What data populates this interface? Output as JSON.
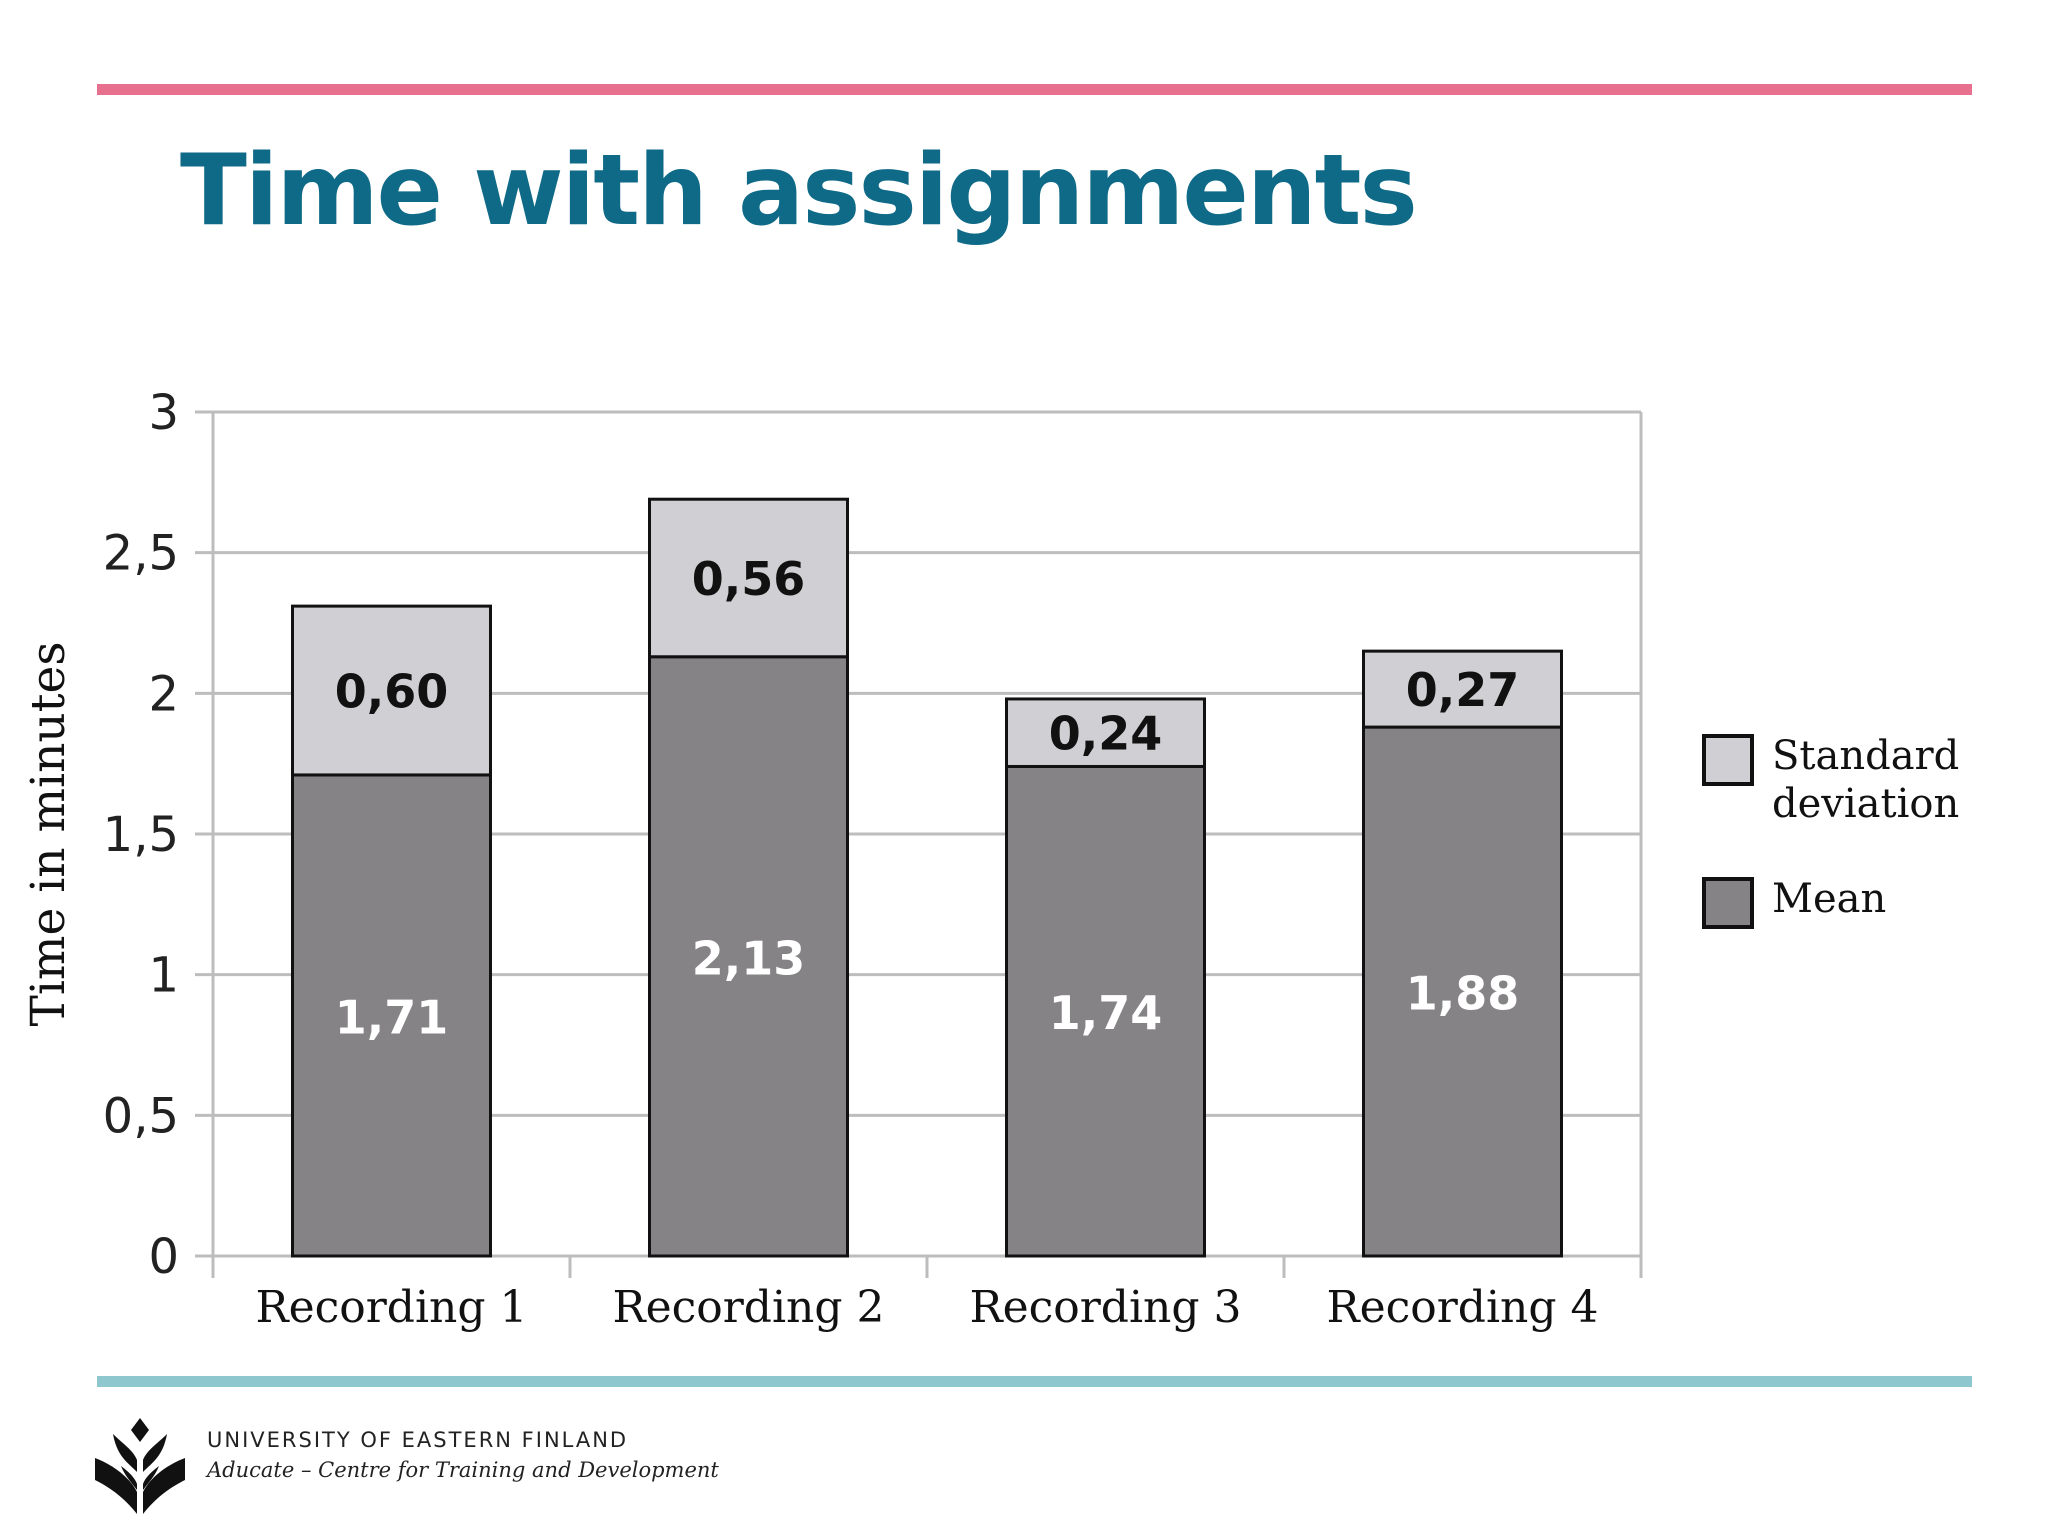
{
  "slide": {
    "title": "Time with assignments",
    "colors": {
      "top_rule": "#e8708f",
      "bottom_rule": "#8ec7ce",
      "title": "#0f6a87"
    }
  },
  "chart_data": {
    "type": "bar",
    "stacked": true,
    "title": "",
    "xlabel": "",
    "ylabel": "Time in minutes",
    "ylim": [
      0,
      3
    ],
    "yticks": [
      0,
      0.5,
      1,
      1.5,
      2,
      2.5,
      3
    ],
    "ytick_labels": [
      "0",
      "0,5",
      "1",
      "1,5",
      "2",
      "2,5",
      "3"
    ],
    "grid": true,
    "legend_position": "right",
    "categories": [
      "Recording 1",
      "Recording 2",
      "Recording 3",
      "Recording 4"
    ],
    "series": [
      {
        "name": "Mean",
        "values": [
          1.71,
          2.13,
          1.74,
          1.88
        ],
        "labels": [
          "1,71",
          "2,13",
          "1,74",
          "1,88"
        ],
        "color": "#858386",
        "label_color": "#ffffff"
      },
      {
        "name": "Standard deviation",
        "values": [
          0.6,
          0.56,
          0.24,
          0.27
        ],
        "labels": [
          "0,60",
          "0,56",
          "0,24",
          "0,27"
        ],
        "color": "#d0cfd3",
        "label_color": "#111111"
      }
    ],
    "legend_order": [
      "Standard deviation",
      "Mean"
    ]
  },
  "footer": {
    "org": "UNIVERSITY OF EASTERN FINLAND",
    "unit": "Aducate – Centre for Training and Development",
    "logo_icon": "uef-logo-icon"
  }
}
